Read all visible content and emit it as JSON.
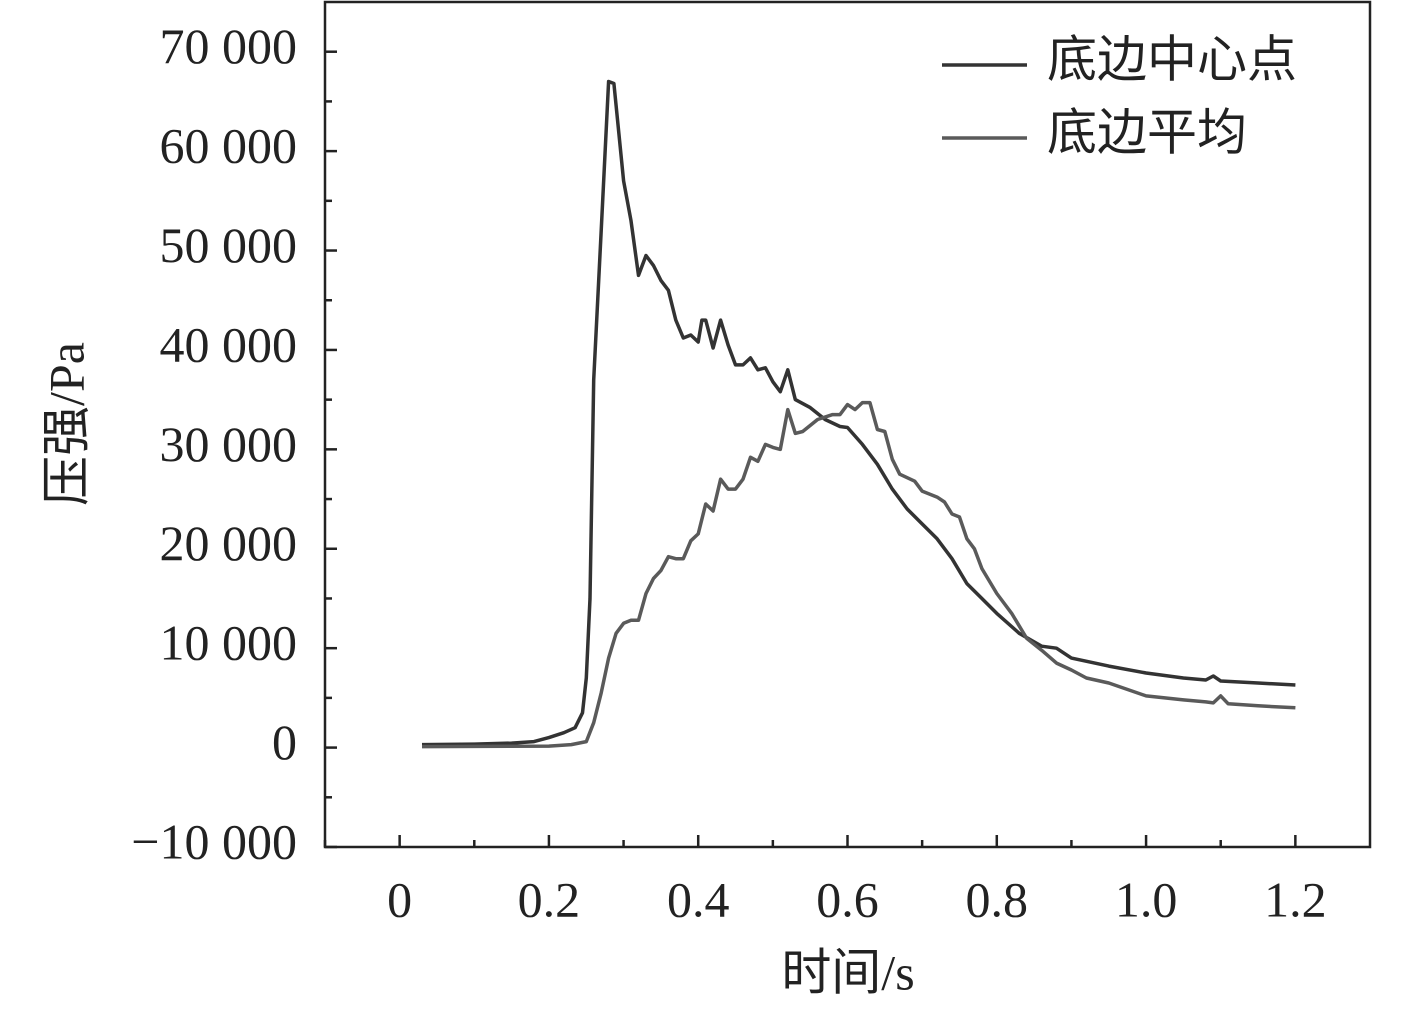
{
  "chart_data": {
    "type": "line",
    "xlabel": "时间/s",
    "ylabel": "压强/Pa",
    "xlim": [
      -0.1,
      1.3
    ],
    "ylim": [
      -10000,
      75000
    ],
    "xticks": [
      0,
      0.2,
      0.4,
      0.6,
      0.8,
      {
        "value": 1.0,
        "label": "1.0"
      },
      1.2
    ],
    "yticks": [
      {
        "value": -10000,
        "label": "−10 000"
      },
      0,
      {
        "value": 10000,
        "label": "10 000"
      },
      {
        "value": 20000,
        "label": "20 000"
      },
      {
        "value": 30000,
        "label": "30 000"
      },
      {
        "value": 40000,
        "label": "40 000"
      },
      {
        "value": 50000,
        "label": "50 000"
      },
      {
        "value": 60000,
        "label": "60 000"
      },
      {
        "value": 70000,
        "label": "70 000"
      }
    ],
    "minor_xticks": [
      -0.1,
      0.1,
      0.3,
      0.5,
      0.7,
      0.9,
      1.1
    ],
    "minor_yticks": [
      -5000,
      5000,
      15000,
      25000,
      35000,
      45000,
      55000,
      65000
    ],
    "legend": "upper right",
    "series": [
      {
        "name": "底边中心点",
        "color": "#333333",
        "x": [
          0.03,
          0.1,
          0.15,
          0.18,
          0.2,
          0.22,
          0.235,
          0.245,
          0.25,
          0.255,
          0.26,
          0.27,
          0.28,
          0.287,
          0.3,
          0.31,
          0.32,
          0.33,
          0.34,
          0.35,
          0.36,
          0.37,
          0.38,
          0.39,
          0.4,
          0.405,
          0.41,
          0.42,
          0.43,
          0.44,
          0.45,
          0.46,
          0.47,
          0.48,
          0.49,
          0.5,
          0.51,
          0.52,
          0.53,
          0.55,
          0.57,
          0.59,
          0.6,
          0.62,
          0.64,
          0.66,
          0.68,
          0.7,
          0.72,
          0.74,
          0.76,
          0.78,
          0.8,
          0.83,
          0.86,
          0.88,
          0.9,
          0.95,
          1.0,
          1.05,
          1.08,
          1.09,
          1.1,
          1.15,
          1.2
        ],
        "values": [
          300,
          350,
          450,
          600,
          1000,
          1500,
          2000,
          3500,
          7000,
          15000,
          37000,
          52000,
          67000,
          66800,
          57000,
          53000,
          47500,
          49500,
          48500,
          47000,
          46000,
          43000,
          41200,
          41500,
          40800,
          43000,
          43000,
          40200,
          43000,
          40500,
          38500,
          38500,
          39200,
          38000,
          38200,
          36800,
          35800,
          38000,
          35000,
          34200,
          33000,
          32300,
          32200,
          30500,
          28500,
          26000,
          24000,
          22500,
          21000,
          19000,
          16500,
          15000,
          13500,
          11500,
          10200,
          10000,
          9000,
          8200,
          7500,
          7000,
          6800,
          7200,
          6700,
          6500,
          6300
        ]
      },
      {
        "name": "底边平均",
        "color": "#5a5a5a",
        "x": [
          0.03,
          0.2,
          0.23,
          0.25,
          0.26,
          0.27,
          0.28,
          0.29,
          0.3,
          0.31,
          0.32,
          0.33,
          0.34,
          0.35,
          0.36,
          0.37,
          0.38,
          0.39,
          0.4,
          0.41,
          0.42,
          0.43,
          0.44,
          0.45,
          0.46,
          0.47,
          0.48,
          0.49,
          0.5,
          0.51,
          0.52,
          0.53,
          0.54,
          0.56,
          0.58,
          0.59,
          0.6,
          0.61,
          0.62,
          0.63,
          0.64,
          0.65,
          0.66,
          0.67,
          0.69,
          0.7,
          0.72,
          0.73,
          0.74,
          0.75,
          0.76,
          0.77,
          0.78,
          0.8,
          0.82,
          0.84,
          0.86,
          0.88,
          0.9,
          0.92,
          0.95,
          1.0,
          1.05,
          1.08,
          1.09,
          1.1,
          1.11,
          1.15,
          1.2
        ],
        "values": [
          100,
          150,
          300,
          600,
          2500,
          5500,
          9000,
          11500,
          12500,
          12800,
          12800,
          15500,
          17000,
          17800,
          19200,
          19000,
          19000,
          20800,
          21500,
          24500,
          23800,
          27000,
          26000,
          26000,
          27000,
          29200,
          28800,
          30500,
          30200,
          30000,
          34000,
          31600,
          31800,
          33000,
          33500,
          33500,
          34500,
          34000,
          34700,
          34700,
          32000,
          31800,
          29000,
          27500,
          26800,
          25800,
          25200,
          24700,
          23500,
          23200,
          21000,
          20000,
          18000,
          15500,
          13500,
          11000,
          9800,
          8500,
          7800,
          7000,
          6500,
          5200,
          4800,
          4600,
          4500,
          5200,
          4400,
          4200,
          4000
        ]
      }
    ]
  }
}
